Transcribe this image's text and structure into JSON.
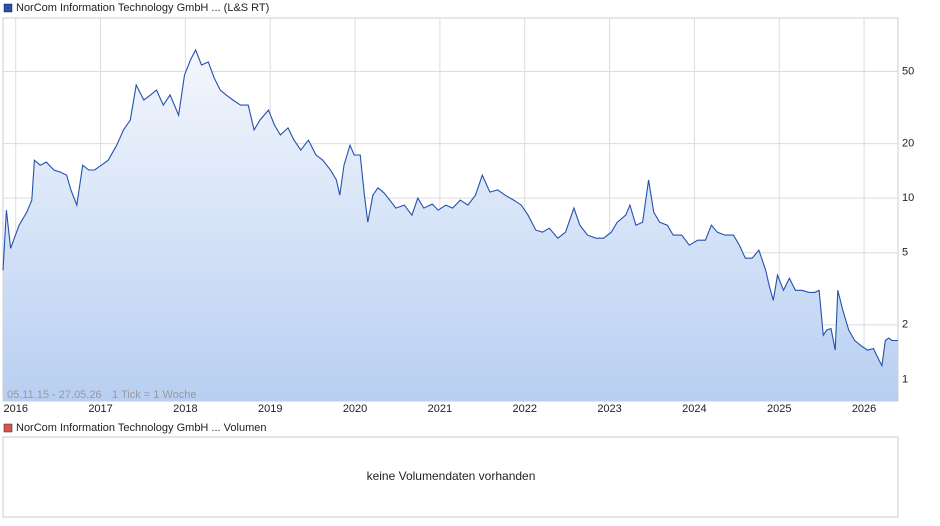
{
  "chart_data": {
    "type": "line",
    "series": [
      {
        "name": "NorCom Information Technology GmbH ... (L&S RT)",
        "color": "#2451ad",
        "values": [
          4.0,
          8.58,
          5.29,
          7.09,
          8.37,
          9.75,
          16.2,
          15.2,
          15.8,
          14.3,
          13.9,
          13.4,
          11.1,
          9.15,
          15.2,
          14.3,
          14.3,
          15.2,
          16.2,
          19.6,
          23.8,
          27.0,
          42.1,
          34.8,
          37.1,
          39.5,
          32.6,
          37.1,
          28.7,
          47.8,
          57.9,
          65.7,
          54.3,
          56.4,
          46.0,
          39.5,
          37.1,
          34.8,
          32.6,
          32.6,
          23.8,
          27.0,
          30.6,
          25.3,
          22.3,
          24.4,
          20.9,
          18.4,
          20.9,
          17.3,
          16.2,
          14.3,
          12.6,
          10.4,
          15.2,
          19.6,
          17.3,
          17.3,
          10.4,
          7.37,
          10.4,
          11.4,
          10.7,
          9.75,
          8.81,
          9.15,
          8.05,
          10.0,
          8.81,
          9.27,
          8.58,
          9.15,
          8.81,
          9.75,
          9.15,
          10.4,
          13.4,
          10.8,
          11.1,
          10.3,
          9.75,
          9.15,
          8.05,
          6.66,
          6.49,
          6.83,
          6.01,
          6.49,
          8.81,
          7.09,
          6.25,
          6.01,
          6.01,
          6.49,
          7.37,
          8.05,
          9.15,
          7.09,
          7.37,
          12.6,
          8.37,
          7.37,
          7.09,
          6.25,
          6.25,
          5.5,
          5.86,
          5.86,
          7.09,
          6.49,
          6.25,
          6.25,
          5.5,
          4.66,
          4.66,
          5.16,
          4.0,
          3.31,
          2.73,
          3.76,
          3.1,
          3.61,
          3.1,
          3.1,
          3.02,
          3.02,
          3.1,
          1.75,
          1.87,
          1.91,
          1.45,
          3.1,
          2.4,
          1.87,
          1.64,
          1.54,
          1.45,
          1.48,
          1.27,
          1.19,
          1.64,
          1.69,
          1.64,
          1.64
        ]
      }
    ],
    "x": [
      2015.85,
      2015.89,
      2015.94,
      2016.04,
      2016.13,
      2016.19,
      2016.22,
      2016.29,
      2016.36,
      2016.45,
      2016.53,
      2016.6,
      2016.65,
      2016.72,
      2016.79,
      2016.86,
      2016.93,
      2017.01,
      2017.09,
      2017.19,
      2017.27,
      2017.35,
      2017.42,
      2017.51,
      2017.59,
      2017.66,
      2017.74,
      2017.82,
      2017.92,
      2017.99,
      2018.06,
      2018.12,
      2018.19,
      2018.27,
      2018.34,
      2018.41,
      2018.48,
      2018.56,
      2018.65,
      2018.74,
      2018.81,
      2018.88,
      2018.98,
      2019.05,
      2019.12,
      2019.21,
      2019.28,
      2019.36,
      2019.45,
      2019.54,
      2019.62,
      2019.71,
      2019.78,
      2019.82,
      2019.87,
      2019.94,
      2019.99,
      2020.06,
      2020.11,
      2020.15,
      2020.21,
      2020.27,
      2020.34,
      2020.41,
      2020.48,
      2020.58,
      2020.67,
      2020.74,
      2020.81,
      2020.91,
      2020.98,
      2021.07,
      2021.15,
      2021.24,
      2021.33,
      2021.42,
      2021.5,
      2021.59,
      2021.68,
      2021.78,
      2021.87,
      2021.96,
      2022.04,
      2022.13,
      2022.21,
      2022.29,
      2022.39,
      2022.48,
      2022.58,
      2022.65,
      2022.74,
      2022.84,
      2022.93,
      2023.02,
      2023.09,
      2023.19,
      2023.24,
      2023.31,
      2023.39,
      2023.46,
      2023.52,
      2023.59,
      2023.68,
      2023.75,
      2023.85,
      2023.94,
      2024.04,
      2024.13,
      2024.2,
      2024.27,
      2024.36,
      2024.46,
      2024.53,
      2024.6,
      2024.68,
      2024.76,
      2024.84,
      2024.88,
      2024.93,
      2024.98,
      2025.05,
      2025.12,
      2025.19,
      2025.27,
      2025.35,
      2025.42,
      2025.47,
      2025.52,
      2025.56,
      2025.61,
      2025.66,
      2025.69,
      2025.75,
      2025.82,
      2025.89,
      2025.96,
      2026.04,
      2026.11,
      2026.18,
      2026.21,
      2026.25,
      2026.29,
      2026.33,
      2026.4
    ],
    "xlim": [
      2015.85,
      2026.4
    ],
    "xticks": [
      2016,
      2017,
      2018,
      2019,
      2020,
      2021,
      2022,
      2023,
      2024,
      2025,
      2026
    ],
    "ylim": [
      0.76,
      98.6
    ],
    "yticks": [
      1,
      2,
      5,
      10,
      20,
      50
    ],
    "log_y": true,
    "grid": true,
    "range_label": "05.11.15 - 27.05.26",
    "tick_note": "1 Tick = 1 Woche"
  },
  "volume_panel": {
    "title": "NorCom Information Technology GmbH ... Volumen",
    "color": "#d9534f",
    "message": "keine Volumendaten vorhanden"
  }
}
